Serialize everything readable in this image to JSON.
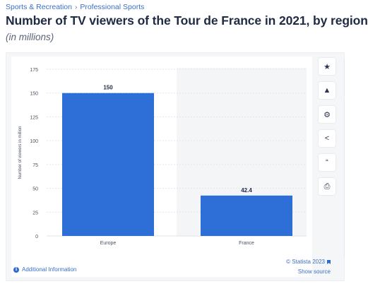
{
  "breadcrumb": {
    "category": "Sports & Recreation",
    "separator": "›",
    "subcategory": "Professional Sports"
  },
  "header": {
    "title": "Number of TV viewers of the Tour de France in 2021, by region",
    "subtitle": "(in millions)"
  },
  "toolbar": {
    "buttons": [
      {
        "id": "favorite",
        "icon": "star-icon",
        "glyph": "★"
      },
      {
        "id": "alert",
        "icon": "bell-icon",
        "glyph": "▲"
      },
      {
        "id": "settings",
        "icon": "gear-icon",
        "glyph": "⚙"
      },
      {
        "id": "share",
        "icon": "share-icon",
        "glyph": "<"
      },
      {
        "id": "cite",
        "icon": "quote-icon",
        "glyph": "“"
      },
      {
        "id": "print",
        "icon": "print-icon",
        "glyph": "⎙"
      }
    ]
  },
  "footer": {
    "additional_info": "Additional Information",
    "credit": "© Statista 2023",
    "show_source": "Show source"
  },
  "colors": {
    "bar": "#2d6fd6",
    "title": "#1f2a44",
    "link": "#3a6fc4",
    "grid": "#e4e6ea"
  },
  "chart_data": {
    "type": "bar",
    "categories": [
      "Europe",
      "France"
    ],
    "values": [
      150,
      42.4
    ],
    "value_labels": [
      "150",
      "42.4"
    ],
    "ylabel": "Number of viewers in million",
    "ylim": [
      0,
      175
    ],
    "yticks": [
      0,
      25,
      50,
      75,
      100,
      125,
      150,
      175
    ],
    "grid": true
  }
}
